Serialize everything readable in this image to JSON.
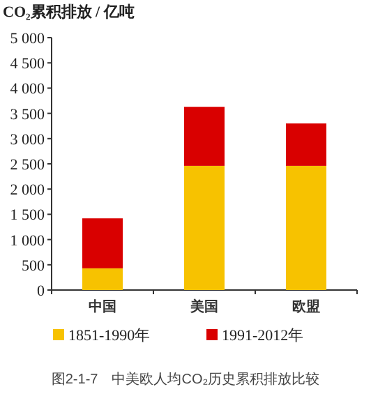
{
  "chart_data": {
    "type": "bar",
    "stacked": true,
    "ylabel": "CO₂累积排放 / 亿吨",
    "categories": [
      "中国",
      "美国",
      "欧盟"
    ],
    "series": [
      {
        "name": "1851-1990年",
        "color": "#f7c200",
        "values": [
          430,
          2460,
          2460
        ]
      },
      {
        "name": "1991-2012年",
        "color": "#d90000",
        "values": [
          990,
          1170,
          840
        ]
      }
    ],
    "ylim": [
      0,
      5000
    ],
    "yticks": [
      0,
      500,
      {
        "value": 1000,
        "label": "1 000"
      },
      {
        "value": 1500,
        "label": "1 500"
      },
      {
        "value": 2000,
        "label": "2 000"
      },
      {
        "value": 2500,
        "label": "2 500"
      },
      {
        "value": 3000,
        "label": "3 000"
      },
      {
        "value": 3500,
        "label": "3 500"
      },
      {
        "value": 4000,
        "label": "4 000"
      },
      {
        "value": 4500,
        "label": "4 500"
      },
      {
        "value": 5000,
        "label": "5 000"
      }
    ],
    "legend": "bottom",
    "grid": false,
    "annotations": [
      "图2-1-7　中美欧人均CO₂历史累积排放比较"
    ]
  }
}
